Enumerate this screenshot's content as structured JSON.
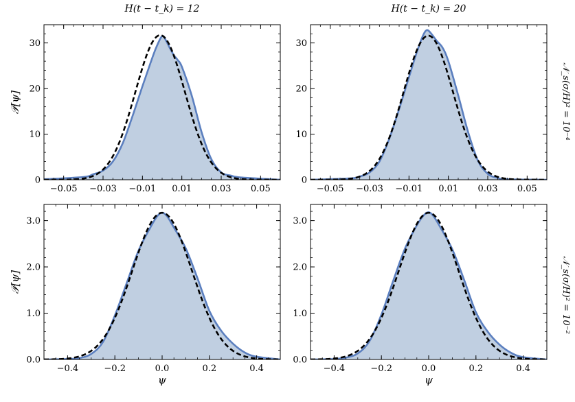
{
  "figure": {
    "col_titles": [
      "H(t − t_k) = 12",
      "H(t − t_k) = 20"
    ],
    "row_titles": [
      "𝒩_s(σ/H)² = 10⁻⁴",
      "𝒩_s(σ/H)² = 10⁻²"
    ],
    "xlabel": "ψ",
    "ylabel": "𝒫[ψ]"
  },
  "colors": {
    "fill": "#c0cfe1",
    "line": "#5b7fbf",
    "gaussian": "#000000"
  },
  "chart_data": [
    {
      "type": "area",
      "row": 0,
      "col": 0,
      "xlim": [
        -0.06,
        0.06
      ],
      "ylim": [
        0,
        34
      ],
      "xticks": [
        -0.05,
        -0.03,
        -0.01,
        0.01,
        0.03,
        0.05
      ],
      "xtick_labels": [
        "−0.05",
        "−0.03",
        "−0.01",
        "0.01",
        "0.03",
        "0.05"
      ],
      "yticks": [
        0,
        10,
        20,
        30
      ],
      "ytick_labels": [
        "0",
        "10",
        "20",
        "30"
      ],
      "series": [
        {
          "style": "filled-solid",
          "x": [
            -0.06,
            -0.04,
            -0.035,
            -0.03,
            -0.025,
            -0.02,
            -0.015,
            -0.01,
            -0.006,
            -0.003,
            0.0,
            0.002,
            0.004,
            0.006,
            0.008,
            0.01,
            0.015,
            0.02,
            0.025,
            0.03,
            0.035,
            0.04,
            0.06
          ],
          "y": [
            0.1,
            0.6,
            1.2,
            2.0,
            4.0,
            8.0,
            14.0,
            20.5,
            25.5,
            29.0,
            31.5,
            30.5,
            28.8,
            27.3,
            26.2,
            24.8,
            18.5,
            10.5,
            4.5,
            1.6,
            0.9,
            0.5,
            0.0
          ]
        },
        {
          "style": "dashed",
          "gaussian": {
            "mean": -0.001,
            "sigma": 0.0126,
            "peak": 31.7
          }
        }
      ]
    },
    {
      "type": "area",
      "row": 0,
      "col": 1,
      "xlim": [
        -0.06,
        0.06
      ],
      "ylim": [
        0,
        34
      ],
      "xticks": [
        -0.05,
        -0.03,
        -0.01,
        0.01,
        0.03,
        0.05
      ],
      "xtick_labels": [
        "−0.05",
        "−0.03",
        "−0.01",
        "0.01",
        "0.03",
        "0.05"
      ],
      "yticks": [
        0,
        10,
        20,
        30
      ],
      "ytick_labels": [
        "0",
        "10",
        "20",
        "30"
      ],
      "series": [
        {
          "style": "filled-solid",
          "x": [
            -0.06,
            -0.04,
            -0.035,
            -0.03,
            -0.025,
            -0.02,
            -0.015,
            -0.01,
            -0.006,
            -0.003,
            -0.001,
            0.001,
            0.004,
            0.007,
            0.01,
            0.015,
            0.02,
            0.025,
            0.03,
            0.035,
            0.04,
            0.06
          ],
          "y": [
            0.0,
            0.3,
            0.7,
            1.6,
            4.0,
            9.0,
            15.5,
            22.5,
            28.0,
            31.5,
            32.8,
            32.2,
            30.5,
            29.0,
            26.0,
            18.5,
            10.5,
            4.2,
            1.3,
            0.4,
            0.1,
            0.0
          ]
        },
        {
          "style": "dashed",
          "gaussian": {
            "mean": -0.0002,
            "sigma": 0.0126,
            "peak": 31.6
          }
        }
      ]
    },
    {
      "type": "area",
      "row": 1,
      "col": 0,
      "xlim": [
        -0.5,
        0.5
      ],
      "ylim": [
        0,
        3.35
      ],
      "xticks": [
        -0.4,
        -0.2,
        0.0,
        0.2,
        0.4
      ],
      "xtick_labels": [
        "−0.4",
        "−0.2",
        "0.0",
        "0.2",
        "0.4"
      ],
      "yticks": [
        0,
        1,
        2,
        3
      ],
      "ytick_labels": [
        "0.0",
        "1.0",
        "2.0",
        "3.0"
      ],
      "series": [
        {
          "style": "filled-solid",
          "x": [
            -0.5,
            -0.4,
            -0.35,
            -0.3,
            -0.25,
            -0.2,
            -0.15,
            -0.1,
            -0.05,
            -0.02,
            0.0,
            0.02,
            0.05,
            0.1,
            0.15,
            0.2,
            0.25,
            0.3,
            0.35,
            0.4,
            0.5
          ],
          "y": [
            0.0,
            0.01,
            0.03,
            0.12,
            0.38,
            0.95,
            1.65,
            2.35,
            2.85,
            3.1,
            3.17,
            3.1,
            2.85,
            2.4,
            1.75,
            1.05,
            0.62,
            0.34,
            0.15,
            0.06,
            0.0
          ]
        },
        {
          "style": "dashed",
          "gaussian": {
            "mean": 0.0,
            "sigma": 0.126,
            "peak": 3.17
          }
        }
      ]
    },
    {
      "type": "area",
      "row": 1,
      "col": 1,
      "xlim": [
        -0.5,
        0.5
      ],
      "ylim": [
        0,
        3.35
      ],
      "xticks": [
        -0.4,
        -0.2,
        0.0,
        0.2,
        0.4
      ],
      "xtick_labels": [
        "−0.4",
        "−0.2",
        "0.0",
        "0.2",
        "0.4"
      ],
      "yticks": [
        0,
        1,
        2,
        3
      ],
      "ytick_labels": [
        "0.0",
        "1.0",
        "2.0",
        "3.0"
      ],
      "series": [
        {
          "style": "filled-solid",
          "x": [
            -0.5,
            -0.4,
            -0.35,
            -0.3,
            -0.25,
            -0.2,
            -0.15,
            -0.1,
            -0.05,
            -0.02,
            0.0,
            0.02,
            0.05,
            0.1,
            0.15,
            0.2,
            0.25,
            0.3,
            0.35,
            0.4,
            0.5
          ],
          "y": [
            0.0,
            0.01,
            0.04,
            0.13,
            0.4,
            0.97,
            1.7,
            2.4,
            2.9,
            3.12,
            3.18,
            3.1,
            2.85,
            2.38,
            1.72,
            1.02,
            0.6,
            0.32,
            0.14,
            0.05,
            0.0
          ]
        },
        {
          "style": "dashed",
          "gaussian": {
            "mean": 0.0,
            "sigma": 0.126,
            "peak": 3.17
          }
        }
      ]
    }
  ]
}
